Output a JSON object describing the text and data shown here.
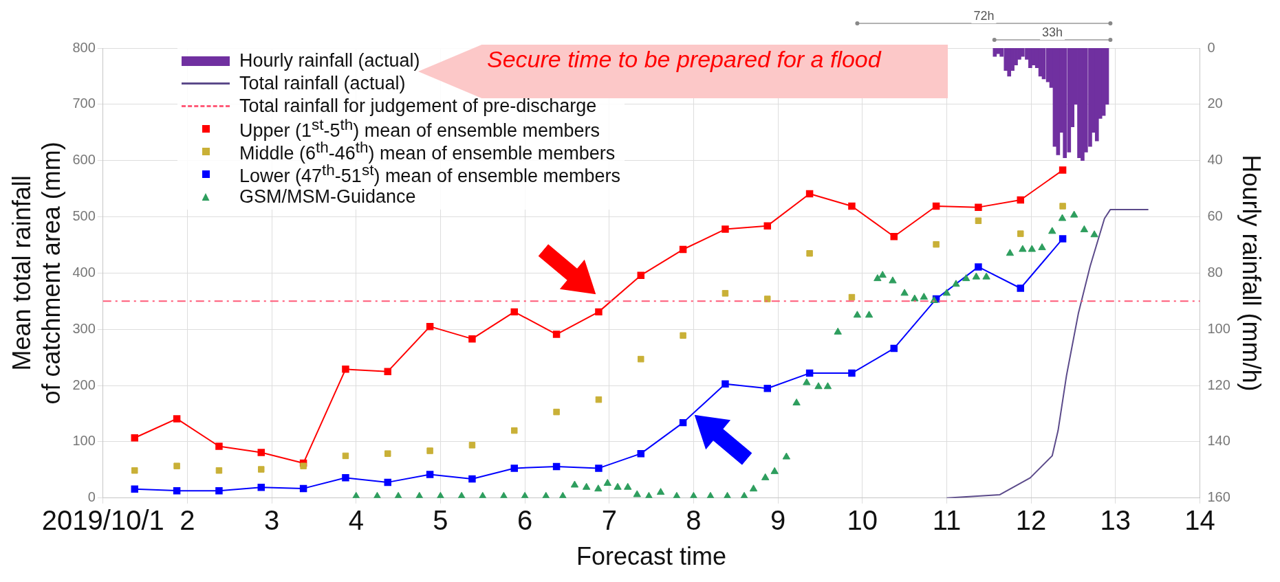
{
  "chart_data": {
    "type": "line",
    "xlabel": "Forecast time",
    "ylabel": "Mean total rainfall of catchment area (mm)",
    "y2label": "Hourly rainfall (mm/h)",
    "xlim": [
      1,
      14
    ],
    "xticks": [
      {
        "value": 1,
        "label": "2019/10/1"
      },
      2,
      3,
      4,
      5,
      6,
      7,
      8,
      9,
      10,
      11,
      12,
      13,
      14
    ],
    "ylim": [
      0,
      800
    ],
    "yticks": [
      0,
      100,
      200,
      300,
      400,
      500,
      600,
      700,
      800
    ],
    "y2lim": [
      160,
      0
    ],
    "y2ticks": [
      0,
      20,
      40,
      60,
      80,
      100,
      120,
      140,
      160
    ],
    "grid": true,
    "legend": "top left",
    "series": [
      {
        "name": "Hourly rainfall (actual)",
        "type": "bar",
        "axis": "y2",
        "color": "#7030a0",
        "x": [
          11.57,
          11.61,
          11.65,
          11.7,
          11.74,
          11.78,
          11.82,
          11.86,
          11.9,
          11.95,
          11.99,
          12.03,
          12.07,
          12.11,
          12.15,
          12.2,
          12.24,
          12.28,
          12.32,
          12.36,
          12.4,
          12.45,
          12.49,
          12.53,
          12.57,
          12.61,
          12.65,
          12.7,
          12.74,
          12.78,
          12.82,
          12.86,
          12.9
        ],
        "values": [
          3,
          2,
          3,
          8,
          10,
          8,
          6,
          4,
          3,
          4,
          7,
          6,
          7,
          10,
          11,
          12,
          14,
          35,
          38,
          30,
          39,
          37,
          28,
          20,
          39,
          40,
          37,
          35,
          30,
          33,
          25,
          24,
          20
        ]
      },
      {
        "name": "Total rainfall (actual)",
        "marker": "none",
        "color": "#5b4a8a",
        "x": [
          11.0,
          11.63,
          11.99,
          12.25,
          12.32,
          12.42,
          12.56,
          12.7,
          12.87,
          12.94,
          13.39
        ],
        "values": [
          0,
          6,
          36,
          75,
          120,
          218,
          328,
          412,
          497,
          513,
          513
        ]
      },
      {
        "name": "Upper (1$^{st}$-5$^{th}$) mean of ensemble members",
        "marker": "square",
        "color": "#ff0000",
        "x": [
          1.375,
          1.875,
          2.375,
          2.875,
          3.375,
          3.875,
          4.375,
          4.875,
          5.375,
          5.875,
          6.375,
          6.875,
          7.375,
          7.875,
          8.375,
          8.875,
          9.375,
          9.875,
          10.375,
          10.875,
          11.375,
          11.875,
          12.375
        ],
        "values": [
          107,
          141,
          92,
          81,
          62,
          229,
          225,
          305,
          283,
          331,
          291,
          331,
          396,
          442,
          478,
          484,
          541,
          519,
          465,
          519,
          517,
          530,
          583
        ]
      },
      {
        "name": "Middle (6$^{th}$-46$^{th}$) mean of ensemble members",
        "type": "scatter",
        "marker": "square",
        "color": "#c9b037",
        "x": [
          1.375,
          1.875,
          2.375,
          2.875,
          3.375,
          3.875,
          4.375,
          4.875,
          5.375,
          5.875,
          6.375,
          6.875,
          7.375,
          7.875,
          8.375,
          8.875,
          9.375,
          9.875,
          10.375,
          10.875,
          11.375,
          11.875,
          12.375
        ],
        "values": [
          49,
          57,
          49,
          51,
          57,
          75,
          79,
          84,
          94,
          120,
          153,
          175,
          247,
          289,
          364,
          354,
          435,
          357,
          null,
          451,
          493,
          470,
          519
        ]
      },
      {
        "name": "Lower (47$^{th}$-51$^{st}$) mean of ensemble members",
        "marker": "square",
        "color": "#0000ff",
        "x": [
          1.375,
          1.875,
          2.375,
          2.875,
          3.375,
          3.875,
          4.375,
          4.875,
          5.375,
          5.875,
          6.375,
          6.875,
          7.375,
          7.875,
          8.375,
          8.875,
          9.375,
          9.875,
          10.375,
          10.875,
          11.375,
          11.875,
          12.375
        ],
        "values": [
          16,
          13,
          13,
          19,
          17,
          36,
          28,
          42,
          34,
          53,
          56,
          53,
          79,
          134,
          203,
          195,
          222,
          222,
          266,
          354,
          411,
          373,
          461
        ]
      },
      {
        "name": "GSM/MSM-Guidance",
        "type": "scatter",
        "marker": "triangle",
        "color": "#2e9e5e",
        "x": [
          4.0,
          4.25,
          4.5,
          4.75,
          5.0,
          5.25,
          5.5,
          5.75,
          6.0,
          6.25,
          6.45,
          6.59,
          6.73,
          6.87,
          6.98,
          7.1,
          7.22,
          7.33,
          7.47,
          7.61,
          7.8,
          8.0,
          8.2,
          8.4,
          8.6,
          8.71,
          8.85,
          8.96,
          9.1,
          9.22,
          9.34,
          9.48,
          9.59,
          9.71,
          9.94,
          10.08,
          10.18,
          10.24,
          10.36,
          10.5,
          10.62,
          10.73,
          10.85,
          11.0,
          11.11,
          11.23,
          11.35,
          11.47,
          11.75,
          11.9,
          12.01,
          12.13,
          12.25,
          12.37,
          12.51,
          12.63,
          12.75
        ],
        "values": [
          3,
          3,
          3,
          3,
          3,
          3,
          3,
          3,
          3,
          3,
          3,
          23,
          19,
          16,
          26,
          19,
          19,
          6,
          3,
          10,
          3,
          3,
          3,
          3,
          3,
          16,
          36,
          47,
          73,
          169,
          205,
          198,
          198,
          295,
          325,
          325,
          390,
          396,
          386,
          364,
          354,
          357,
          351,
          364,
          380,
          390,
          393,
          393,
          435,
          442,
          442,
          445,
          474,
          497,
          503,
          477,
          468
        ]
      }
    ],
    "ref_lines": [
      {
        "axis": "y",
        "value": 350,
        "label": "Total rainfall for judgement of pre-discharge",
        "color": "#ff5a78",
        "line_style": "dashed"
      }
    ],
    "annotations": [
      "Secure time to be prepared for a flood",
      "72h",
      "33h"
    ]
  }
}
